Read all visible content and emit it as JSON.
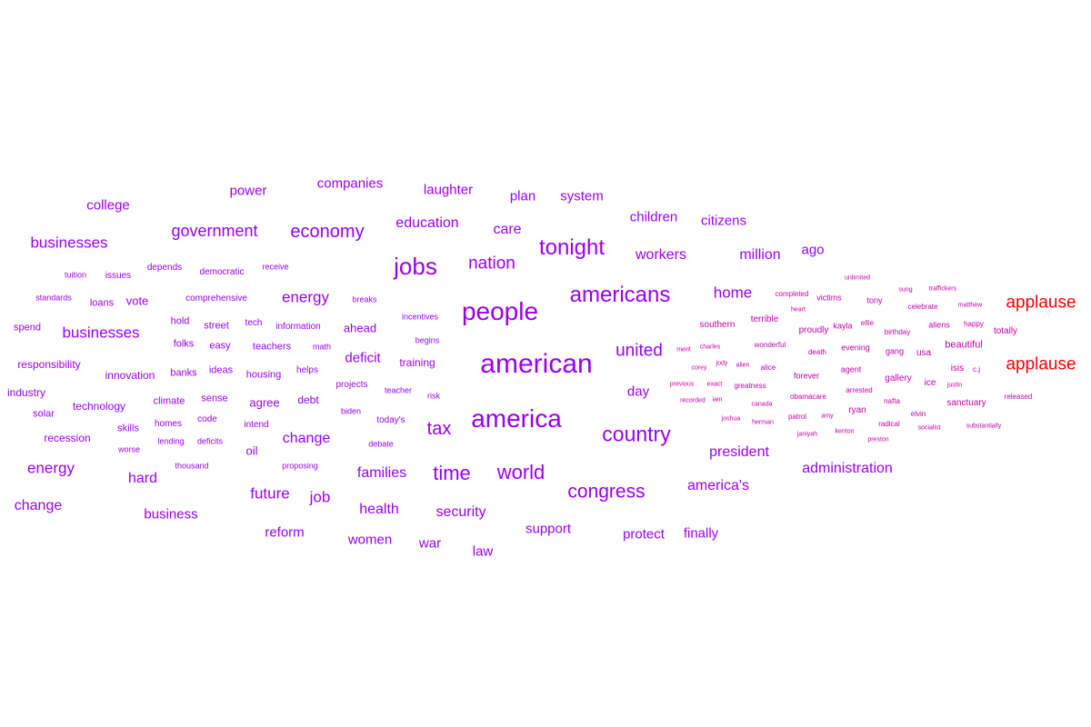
{
  "colors": {
    "primary": "#9900ee",
    "secondary": "#c400a8",
    "highlight": "#f50000"
  },
  "words": [
    {
      "text": "american",
      "group": "primary"
    },
    {
      "text": "america",
      "group": "primary"
    },
    {
      "text": "people",
      "group": "primary"
    },
    {
      "text": "jobs",
      "group": "primary"
    },
    {
      "text": "americans",
      "group": "primary"
    },
    {
      "text": "tonight",
      "group": "primary"
    },
    {
      "text": "country",
      "group": "primary"
    },
    {
      "text": "world",
      "group": "primary"
    },
    {
      "text": "time",
      "group": "primary"
    },
    {
      "text": "congress",
      "group": "primary"
    },
    {
      "text": "economy",
      "group": "primary"
    },
    {
      "text": "tax",
      "group": "primary"
    },
    {
      "text": "nation",
      "group": "primary"
    },
    {
      "text": "united",
      "group": "primary"
    },
    {
      "text": "government",
      "group": "primary"
    },
    {
      "text": "businesses",
      "group": "primary"
    },
    {
      "text": "businesses",
      "group": "primary"
    },
    {
      "text": "energy",
      "group": "primary"
    },
    {
      "text": "energy",
      "group": "primary"
    },
    {
      "text": "education",
      "group": "primary"
    },
    {
      "text": "care",
      "group": "primary"
    },
    {
      "text": "families",
      "group": "primary"
    },
    {
      "text": "health",
      "group": "primary"
    },
    {
      "text": "security",
      "group": "primary"
    },
    {
      "text": "future",
      "group": "primary"
    },
    {
      "text": "job",
      "group": "primary"
    },
    {
      "text": "hard",
      "group": "primary"
    },
    {
      "text": "change",
      "group": "primary"
    },
    {
      "text": "change",
      "group": "primary"
    },
    {
      "text": "president",
      "group": "primary"
    },
    {
      "text": "administration",
      "group": "primary"
    },
    {
      "text": "america's",
      "group": "primary"
    },
    {
      "text": "workers",
      "group": "primary"
    },
    {
      "text": "million",
      "group": "primary"
    },
    {
      "text": "home",
      "group": "primary"
    },
    {
      "text": "children",
      "group": "primary"
    },
    {
      "text": "citizens",
      "group": "primary"
    },
    {
      "text": "day",
      "group": "primary"
    },
    {
      "text": "laughter",
      "group": "primary"
    },
    {
      "text": "companies",
      "group": "primary"
    },
    {
      "text": "plan",
      "group": "primary"
    },
    {
      "text": "system",
      "group": "primary"
    },
    {
      "text": "power",
      "group": "primary"
    },
    {
      "text": "college",
      "group": "primary"
    },
    {
      "text": "ago",
      "group": "primary"
    },
    {
      "text": "support",
      "group": "primary"
    },
    {
      "text": "protect",
      "group": "primary"
    },
    {
      "text": "finally",
      "group": "primary"
    },
    {
      "text": "reform",
      "group": "primary"
    },
    {
      "text": "women",
      "group": "primary"
    },
    {
      "text": "war",
      "group": "primary"
    },
    {
      "text": "law",
      "group": "primary"
    },
    {
      "text": "business",
      "group": "primary"
    },
    {
      "text": "deficit",
      "group": "primary"
    },
    {
      "text": "ahead",
      "group": "primary"
    },
    {
      "text": "vote",
      "group": "primary"
    },
    {
      "text": "innovation",
      "group": "primary"
    },
    {
      "text": "technology",
      "group": "primary"
    },
    {
      "text": "responsibility",
      "group": "primary"
    },
    {
      "text": "industry",
      "group": "primary"
    },
    {
      "text": "recession",
      "group": "primary"
    },
    {
      "text": "spend",
      "group": "primary"
    },
    {
      "text": "agree",
      "group": "primary"
    },
    {
      "text": "debt",
      "group": "primary"
    },
    {
      "text": "oil",
      "group": "primary"
    },
    {
      "text": "training",
      "group": "primary"
    },
    {
      "text": "banks",
      "group": "primary"
    },
    {
      "text": "climate",
      "group": "primary"
    },
    {
      "text": "skills",
      "group": "primary"
    },
    {
      "text": "folks",
      "group": "primary"
    },
    {
      "text": "hold",
      "group": "primary"
    },
    {
      "text": "street",
      "group": "primary"
    },
    {
      "text": "teachers",
      "group": "primary"
    },
    {
      "text": "housing",
      "group": "primary"
    },
    {
      "text": "loans",
      "group": "primary"
    },
    {
      "text": "solar",
      "group": "primary"
    },
    {
      "text": "easy",
      "group": "primary"
    },
    {
      "text": "ideas",
      "group": "primary"
    },
    {
      "text": "sense",
      "group": "primary"
    },
    {
      "text": "homes",
      "group": "primary"
    },
    {
      "text": "code",
      "group": "primary"
    },
    {
      "text": "helps",
      "group": "primary"
    },
    {
      "text": "information",
      "group": "primary"
    },
    {
      "text": "intend",
      "group": "primary"
    },
    {
      "text": "tech",
      "group": "primary"
    },
    {
      "text": "comprehensive",
      "group": "primary"
    },
    {
      "text": "democratic",
      "group": "primary"
    },
    {
      "text": "depends",
      "group": "primary"
    },
    {
      "text": "issues",
      "group": "primary"
    },
    {
      "text": "tuition",
      "group": "primary"
    },
    {
      "text": "standards",
      "group": "primary"
    },
    {
      "text": "receive",
      "group": "primary"
    },
    {
      "text": "breaks",
      "group": "primary"
    },
    {
      "text": "incentives",
      "group": "primary"
    },
    {
      "text": "begins",
      "group": "primary"
    },
    {
      "text": "math",
      "group": "primary"
    },
    {
      "text": "projects",
      "group": "primary"
    },
    {
      "text": "teacher",
      "group": "primary"
    },
    {
      "text": "risk",
      "group": "primary"
    },
    {
      "text": "biden",
      "group": "primary"
    },
    {
      "text": "today's",
      "group": "primary"
    },
    {
      "text": "debate",
      "group": "primary"
    },
    {
      "text": "proposing",
      "group": "primary"
    },
    {
      "text": "lending",
      "group": "primary"
    },
    {
      "text": "deficits",
      "group": "primary"
    },
    {
      "text": "worse",
      "group": "primary"
    },
    {
      "text": "thousand",
      "group": "primary"
    },
    {
      "text": "applause",
      "group": "highlight"
    },
    {
      "text": "applause",
      "group": "highlight"
    },
    {
      "text": "southern",
      "group": "secondary"
    },
    {
      "text": "terrible",
      "group": "secondary"
    },
    {
      "text": "proudly",
      "group": "secondary"
    },
    {
      "text": "kayla",
      "group": "secondary"
    },
    {
      "text": "ellie",
      "group": "secondary"
    },
    {
      "text": "birthday",
      "group": "secondary"
    },
    {
      "text": "aliens",
      "group": "secondary"
    },
    {
      "text": "happy",
      "group": "secondary"
    },
    {
      "text": "totally",
      "group": "secondary"
    },
    {
      "text": "beautiful",
      "group": "secondary"
    },
    {
      "text": "usa",
      "group": "secondary"
    },
    {
      "text": "gang",
      "group": "secondary"
    },
    {
      "text": "evening",
      "group": "secondary"
    },
    {
      "text": "death",
      "group": "secondary"
    },
    {
      "text": "wonderful",
      "group": "secondary"
    },
    {
      "text": "alice",
      "group": "secondary"
    },
    {
      "text": "forever",
      "group": "secondary"
    },
    {
      "text": "agent",
      "group": "secondary"
    },
    {
      "text": "gallery",
      "group": "secondary"
    },
    {
      "text": "ice",
      "group": "secondary"
    },
    {
      "text": "isis",
      "group": "secondary"
    },
    {
      "text": "c.j",
      "group": "secondary"
    },
    {
      "text": "arrested",
      "group": "secondary"
    },
    {
      "text": "obamacare",
      "group": "secondary"
    },
    {
      "text": "nafta",
      "group": "secondary"
    },
    {
      "text": "sanctuary",
      "group": "secondary"
    },
    {
      "text": "released",
      "group": "secondary"
    },
    {
      "text": "ryan",
      "group": "secondary"
    },
    {
      "text": "elvin",
      "group": "secondary"
    },
    {
      "text": "patrol",
      "group": "secondary"
    },
    {
      "text": "amy",
      "group": "secondary"
    },
    {
      "text": "radical",
      "group": "secondary"
    },
    {
      "text": "socialist",
      "group": "secondary"
    },
    {
      "text": "substantially",
      "group": "secondary"
    },
    {
      "text": "janiyah",
      "group": "secondary"
    },
    {
      "text": "kenton",
      "group": "secondary"
    },
    {
      "text": "preston",
      "group": "secondary"
    },
    {
      "text": "greatness",
      "group": "secondary"
    },
    {
      "text": "canada",
      "group": "secondary"
    },
    {
      "text": "herman",
      "group": "secondary"
    },
    {
      "text": "joshua",
      "group": "secondary"
    },
    {
      "text": "iain",
      "group": "secondary"
    },
    {
      "text": "recorded",
      "group": "secondary"
    },
    {
      "text": "exact",
      "group": "secondary"
    },
    {
      "text": "previous",
      "group": "secondary"
    },
    {
      "text": "corey",
      "group": "secondary"
    },
    {
      "text": "jody",
      "group": "secondary"
    },
    {
      "text": "alien",
      "group": "secondary"
    },
    {
      "text": "merit",
      "group": "secondary"
    },
    {
      "text": "charles",
      "group": "secondary"
    },
    {
      "text": "completed",
      "group": "secondary"
    },
    {
      "text": "heart",
      "group": "secondary"
    },
    {
      "text": "victims",
      "group": "secondary"
    },
    {
      "text": "tony",
      "group": "secondary"
    },
    {
      "text": "unlimited",
      "group": "secondary"
    },
    {
      "text": "sung",
      "group": "secondary"
    },
    {
      "text": "traffickers",
      "group": "secondary"
    },
    {
      "text": "celebrate",
      "group": "secondary"
    },
    {
      "text": "matthew",
      "group": "secondary"
    },
    {
      "text": "justin",
      "group": "secondary"
    }
  ]
}
